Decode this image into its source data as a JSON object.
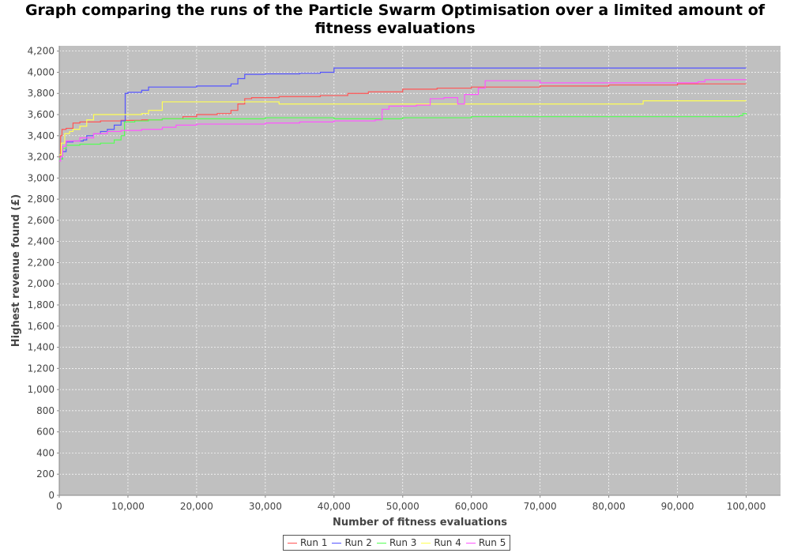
{
  "chart_data": {
    "type": "line",
    "title": "Graph comparing the runs of the Particle Swarm Optimisation over a limited amount of fitness evaluations",
    "xlabel": "Number of fitness evaluations",
    "ylabel": "Highest revenue found (£)",
    "xlim": [
      0,
      105000
    ],
    "ylim": [
      0,
      4250
    ],
    "x_ticks": [
      0,
      10000,
      20000,
      30000,
      40000,
      50000,
      60000,
      70000,
      80000,
      90000,
      100000
    ],
    "x_tick_labels": [
      "0",
      "10,000",
      "20,000",
      "30,000",
      "40,000",
      "50,000",
      "60,000",
      "70,000",
      "80,000",
      "90,000",
      "100,000"
    ],
    "y_ticks": [
      0,
      200,
      400,
      600,
      800,
      1000,
      1200,
      1400,
      1600,
      1800,
      2000,
      2200,
      2400,
      2600,
      2800,
      3000,
      3200,
      3400,
      3600,
      3800,
      4000,
      4200
    ],
    "y_tick_labels": [
      "0",
      "200",
      "400",
      "600",
      "800",
      "1,000",
      "1,200",
      "1,400",
      "1,600",
      "1,800",
      "2,000",
      "2,200",
      "2,400",
      "2,600",
      "2,800",
      "3,000",
      "3,200",
      "3,400",
      "3,600",
      "3,800",
      "4,000",
      "4,200"
    ],
    "grid": true,
    "legend_position": "bottom",
    "plot_background": "#c0c0c0",
    "step": true,
    "series": [
      {
        "name": "Run 1",
        "color": "#ff5555",
        "points": [
          [
            0,
            3200
          ],
          [
            200,
            3400
          ],
          [
            400,
            3460
          ],
          [
            1000,
            3470
          ],
          [
            2000,
            3520
          ],
          [
            3000,
            3530
          ],
          [
            6000,
            3540
          ],
          [
            9000,
            3545
          ],
          [
            12000,
            3550
          ],
          [
            15000,
            3560
          ],
          [
            18000,
            3580
          ],
          [
            20000,
            3600
          ],
          [
            23000,
            3610
          ],
          [
            25000,
            3640
          ],
          [
            26000,
            3700
          ],
          [
            27000,
            3750
          ],
          [
            28000,
            3760
          ],
          [
            32000,
            3770
          ],
          [
            38000,
            3780
          ],
          [
            42000,
            3800
          ],
          [
            45000,
            3815
          ],
          [
            50000,
            3840
          ],
          [
            55000,
            3850
          ],
          [
            60000,
            3860
          ],
          [
            70000,
            3870
          ],
          [
            80000,
            3880
          ],
          [
            90000,
            3890
          ],
          [
            93000,
            3890
          ],
          [
            100000,
            3890
          ]
        ]
      },
      {
        "name": "Run 2",
        "color": "#5555ff",
        "points": [
          [
            0,
            3180
          ],
          [
            500,
            3250
          ],
          [
            1000,
            3340
          ],
          [
            2000,
            3350
          ],
          [
            3500,
            3360
          ],
          [
            4000,
            3400
          ],
          [
            5000,
            3420
          ],
          [
            6000,
            3440
          ],
          [
            7000,
            3460
          ],
          [
            8000,
            3500
          ],
          [
            9000,
            3540
          ],
          [
            9600,
            3800
          ],
          [
            10000,
            3810
          ],
          [
            12000,
            3830
          ],
          [
            13000,
            3860
          ],
          [
            20000,
            3870
          ],
          [
            25000,
            3890
          ],
          [
            26000,
            3940
          ],
          [
            27000,
            3980
          ],
          [
            30000,
            3985
          ],
          [
            35000,
            3990
          ],
          [
            38000,
            4000
          ],
          [
            40000,
            4040
          ],
          [
            100000,
            4040
          ]
        ]
      },
      {
        "name": "Run 3",
        "color": "#55ff55",
        "points": [
          [
            0,
            3180
          ],
          [
            500,
            3280
          ],
          [
            1000,
            3310
          ],
          [
            3000,
            3320
          ],
          [
            6000,
            3330
          ],
          [
            8000,
            3360
          ],
          [
            9000,
            3400
          ],
          [
            9500,
            3530
          ],
          [
            11000,
            3540
          ],
          [
            13000,
            3550
          ],
          [
            15000,
            3560
          ],
          [
            20000,
            3560
          ],
          [
            30000,
            3570
          ],
          [
            40000,
            3560
          ],
          [
            50000,
            3570
          ],
          [
            60000,
            3580
          ],
          [
            70000,
            3580
          ],
          [
            80000,
            3580
          ],
          [
            90000,
            3580
          ],
          [
            99000,
            3590
          ],
          [
            99500,
            3610
          ],
          [
            100000,
            3600
          ]
        ]
      },
      {
        "name": "Run 4",
        "color": "#ffff55",
        "points": [
          [
            0,
            3220
          ],
          [
            300,
            3330
          ],
          [
            800,
            3420
          ],
          [
            1500,
            3440
          ],
          [
            2000,
            3460
          ],
          [
            3000,
            3490
          ],
          [
            4000,
            3550
          ],
          [
            5000,
            3600
          ],
          [
            8000,
            3600
          ],
          [
            10000,
            3600
          ],
          [
            12000,
            3610
          ],
          [
            13000,
            3640
          ],
          [
            15000,
            3720
          ],
          [
            20000,
            3720
          ],
          [
            30000,
            3720
          ],
          [
            32000,
            3700
          ],
          [
            40000,
            3700
          ],
          [
            50000,
            3700
          ],
          [
            60000,
            3700
          ],
          [
            70000,
            3700
          ],
          [
            80000,
            3700
          ],
          [
            85000,
            3730
          ],
          [
            100000,
            3730
          ]
        ]
      },
      {
        "name": "Run 5",
        "color": "#ff55ff",
        "points": [
          [
            0,
            3160
          ],
          [
            200,
            3200
          ],
          [
            500,
            3300
          ],
          [
            1000,
            3350
          ],
          [
            3000,
            3380
          ],
          [
            5000,
            3420
          ],
          [
            7000,
            3440
          ],
          [
            9000,
            3450
          ],
          [
            12000,
            3460
          ],
          [
            15000,
            3480
          ],
          [
            17000,
            3500
          ],
          [
            20000,
            3510
          ],
          [
            25000,
            3510
          ],
          [
            30000,
            3520
          ],
          [
            35000,
            3530
          ],
          [
            40000,
            3540
          ],
          [
            46000,
            3550
          ],
          [
            47000,
            3650
          ],
          [
            48000,
            3680
          ],
          [
            52000,
            3690
          ],
          [
            54000,
            3750
          ],
          [
            56000,
            3760
          ],
          [
            58000,
            3700
          ],
          [
            59000,
            3790
          ],
          [
            61000,
            3850
          ],
          [
            62000,
            3920
          ],
          [
            70000,
            3900
          ],
          [
            80000,
            3900
          ],
          [
            90000,
            3900
          ],
          [
            93000,
            3910
          ],
          [
            94000,
            3930
          ],
          [
            100000,
            3930
          ]
        ]
      }
    ]
  }
}
